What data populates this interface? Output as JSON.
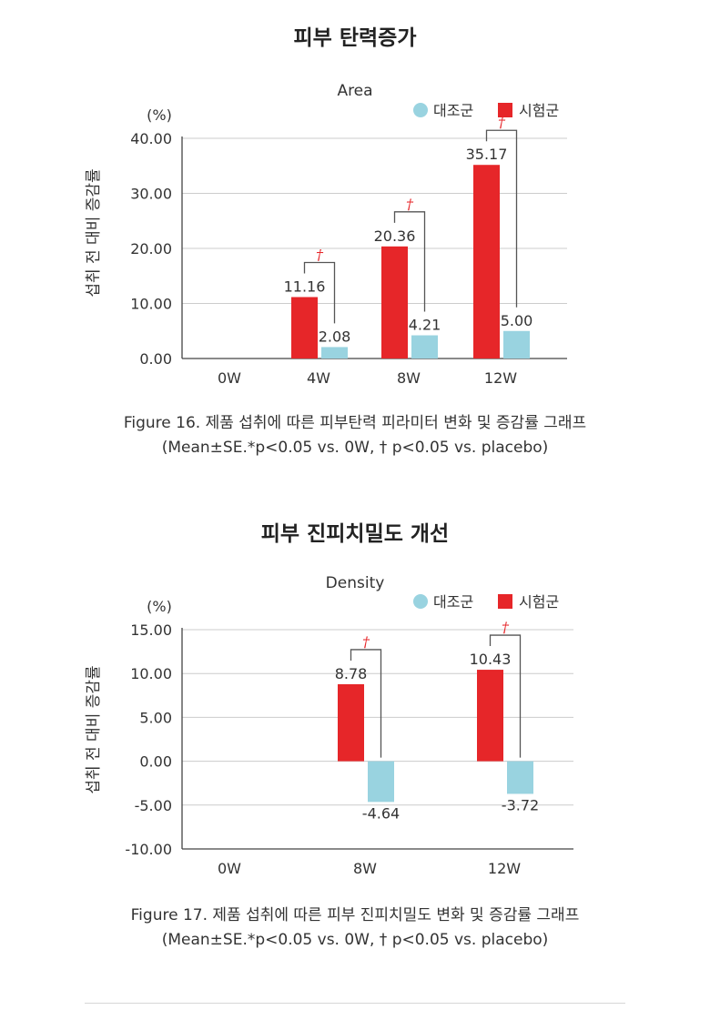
{
  "colors": {
    "control": "#99d3e0",
    "treatment": "#e62629",
    "significance": "#e62629",
    "grid": "#cccccc",
    "axis": "#444444",
    "bracket": "#555555"
  },
  "sections": [
    {
      "title": "피부 탄력증가",
      "caption_line1": "Figure 16. 제품 섭취에 따른 피부탄력 피라미터 변화 및 증감률 그래프",
      "caption_line2": "(Mean±SE.*p<0.05 vs. 0W, † p<0.05 vs. placebo)"
    },
    {
      "title": "피부 진피치밀도 개선",
      "caption_line1": "Figure 17. 제품 섭취에 따른 피부 진피치밀도 변화 및 증감률 그래프",
      "caption_line2": "(Mean±SE.*p<0.05 vs. 0W, † p<0.05 vs. placebo)"
    }
  ],
  "chart_data": [
    {
      "type": "bar",
      "title": "Area",
      "unit_label": "(%)",
      "ylabel": "섭취 전 대비 증감률",
      "ylim": [
        0,
        40
      ],
      "yticks": [
        "0.00",
        "10.00",
        "20.00",
        "30.00",
        "40.00"
      ],
      "ytick_values": [
        0,
        10,
        20,
        30,
        40
      ],
      "categories": [
        "0W",
        "4W",
        "8W",
        "12W"
      ],
      "legend_position": "top-right",
      "grid": true,
      "series": [
        {
          "name": "시험군",
          "values": [
            null,
            11.16,
            20.36,
            35.17
          ],
          "labels": [
            "",
            "11.16",
            "20.36",
            "35.17"
          ]
        },
        {
          "name": "대조군",
          "values": [
            null,
            2.08,
            4.21,
            5.0
          ],
          "labels": [
            "",
            "2.08",
            "4.21",
            "5.00"
          ]
        }
      ],
      "significance": [
        {
          "category": "4W",
          "mark": "†"
        },
        {
          "category": "8W",
          "mark": "†"
        },
        {
          "category": "12W",
          "mark": "†"
        }
      ]
    },
    {
      "type": "bar",
      "title": "Density",
      "unit_label": "(%)",
      "ylabel": "섭취 전 대비 증감률",
      "ylim": [
        -10,
        15
      ],
      "yticks": [
        "-10.00",
        "-5.00",
        "0.00",
        "5.00",
        "10.00",
        "15.00"
      ],
      "ytick_values": [
        -10,
        -5,
        0,
        5,
        10,
        15
      ],
      "categories": [
        "0W",
        "8W",
        "12W"
      ],
      "legend_position": "top-right",
      "grid": true,
      "series": [
        {
          "name": "시험군",
          "values": [
            null,
            8.78,
            10.43
          ],
          "labels": [
            "",
            "8.78",
            "10.43"
          ]
        },
        {
          "name": "대조군",
          "values": [
            null,
            -4.64,
            -3.72
          ],
          "labels": [
            "",
            "-4.64",
            "-3.72"
          ]
        }
      ],
      "significance": [
        {
          "category": "8W",
          "mark": "†"
        },
        {
          "category": "12W",
          "mark": "†"
        }
      ]
    }
  ]
}
